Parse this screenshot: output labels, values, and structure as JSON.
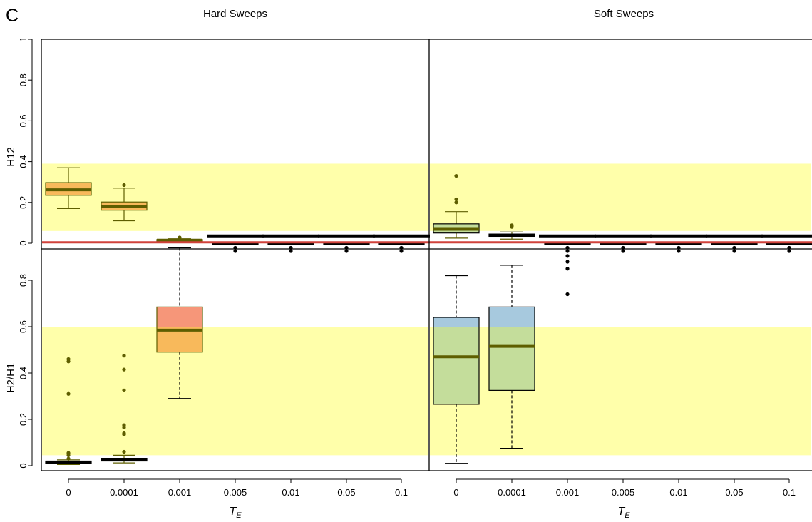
{
  "figure": {
    "panel_letter": "C",
    "colors": {
      "highlight_band": "#ffffaa",
      "threshold_line": "#d0423b",
      "olive": "#5e5e00",
      "orange_box": "#f8b95b",
      "salmon_box": "#f69679",
      "green_box": "#c4dd9b",
      "blue_box": "#a7c9de",
      "axis": "#000000"
    }
  },
  "chart_data": {
    "type": "boxplot",
    "xlabel": "T",
    "xlabel_sub": "E",
    "categories": [
      "0",
      "0.0001",
      "0.001",
      "0.005",
      "0.01",
      "0.05",
      "0.1"
    ],
    "columns": [
      {
        "title": "Hard Sweeps",
        "h12": {
          "band": [
            0.06,
            0.39
          ],
          "threshold": 0.015,
          "boxes": [
            {
              "q1": 0.235,
              "median": 0.262,
              "q3": 0.297,
              "lo": 0.17,
              "hi": 0.37,
              "out": [],
              "style": "orange"
            },
            {
              "q1": 0.162,
              "median": 0.18,
              "q3": 0.202,
              "lo": 0.11,
              "hi": 0.27,
              "out": [
                0.285
              ],
              "style": "orange"
            },
            {
              "q1": 0.01,
              "median": 0.015,
              "q3": 0.018,
              "lo": 0.01,
              "hi": 0.022,
              "out": [
                0.028
              ],
              "style": "orange"
            },
            {
              "q1": 0.0,
              "median": 0.002,
              "q3": 0.005,
              "lo": 0.0,
              "hi": 0.006,
              "out": [],
              "style": "flat"
            },
            {
              "q1": 0.0,
              "median": 0.002,
              "q3": 0.005,
              "lo": 0.0,
              "hi": 0.006,
              "out": [],
              "style": "flat"
            },
            {
              "q1": 0.0,
              "median": 0.002,
              "q3": 0.005,
              "lo": 0.0,
              "hi": 0.006,
              "out": [],
              "style": "flat"
            },
            {
              "q1": 0.0,
              "median": 0.002,
              "q3": 0.005,
              "lo": 0.0,
              "hi": 0.006,
              "out": [],
              "style": "flat"
            }
          ]
        },
        "h2h1": {
          "band": [
            0.045,
            0.6
          ],
          "boxes": [
            {
              "q1": 0.01,
              "median": 0.015,
              "q3": 0.02,
              "lo": 0.005,
              "hi": 0.025,
              "out": [
                0.03,
                0.045,
                0.055,
                0.31,
                0.45,
                0.46
              ],
              "style": "flat"
            },
            {
              "q1": 0.02,
              "median": 0.025,
              "q3": 0.032,
              "lo": 0.012,
              "hi": 0.045,
              "out": [
                0.06,
                0.135,
                0.14,
                0.165,
                0.175,
                0.325,
                0.415,
                0.475
              ],
              "style": "flat"
            },
            {
              "q1": 0.49,
              "median": 0.585,
              "q3": 0.685,
              "lo": 0.29,
              "hi": 0.94,
              "out": [],
              "style": "salmon"
            },
            {
              "q1": 0.99,
              "median": 0.99,
              "q3": 0.99,
              "lo": 0.99,
              "hi": 0.99,
              "out": [
                1.03,
                0.94
              ],
              "style": "top"
            },
            {
              "q1": 0.99,
              "median": 0.99,
              "q3": 0.99,
              "lo": 0.99,
              "hi": 0.99,
              "out": [
                1.03,
                0.94
              ],
              "style": "top"
            },
            {
              "q1": 0.99,
              "median": 0.99,
              "q3": 0.99,
              "lo": 0.99,
              "hi": 0.99,
              "out": [
                1.03,
                0.94
              ],
              "style": "top"
            },
            {
              "q1": 0.99,
              "median": 0.99,
              "q3": 0.99,
              "lo": 0.99,
              "hi": 0.99,
              "out": [
                1.03,
                0.94
              ],
              "style": "top"
            }
          ]
        }
      },
      {
        "title": "Soft Sweeps",
        "h12": {
          "band": [
            0.06,
            0.39
          ],
          "threshold": 0.015,
          "boxes": [
            {
              "q1": 0.05,
              "median": 0.068,
              "q3": 0.095,
              "lo": 0.025,
              "hi": 0.155,
              "out": [
                0.2,
                0.215,
                0.33
              ],
              "style": "green"
            },
            {
              "q1": 0.03,
              "median": 0.038,
              "q3": 0.045,
              "lo": 0.02,
              "hi": 0.055,
              "out": [
                0.08,
                0.088
              ],
              "style": "flat"
            },
            {
              "q1": 0.0,
              "median": 0.002,
              "q3": 0.005,
              "lo": 0.0,
              "hi": 0.006,
              "out": [],
              "style": "flat"
            },
            {
              "q1": 0.0,
              "median": 0.002,
              "q3": 0.005,
              "lo": 0.0,
              "hi": 0.006,
              "out": [],
              "style": "flat"
            },
            {
              "q1": 0.0,
              "median": 0.002,
              "q3": 0.005,
              "lo": 0.0,
              "hi": 0.006,
              "out": [],
              "style": "flat"
            },
            {
              "q1": 0.0,
              "median": 0.002,
              "q3": 0.005,
              "lo": 0.0,
              "hi": 0.006,
              "out": [],
              "style": "flat"
            },
            {
              "q1": 0.0,
              "median": 0.002,
              "q3": 0.005,
              "lo": 0.0,
              "hi": 0.006,
              "out": [],
              "style": "flat"
            }
          ]
        },
        "h2h1": {
          "band": [
            0.045,
            0.6
          ],
          "boxes": [
            {
              "q1": 0.265,
              "median": 0.47,
              "q3": 0.64,
              "lo": 0.01,
              "hi": 0.82,
              "out": [],
              "style": "blue"
            },
            {
              "q1": 0.325,
              "median": 0.515,
              "q3": 0.685,
              "lo": 0.075,
              "hi": 0.865,
              "out": [],
              "style": "blue"
            },
            {
              "q1": 0.99,
              "median": 0.99,
              "q3": 0.99,
              "lo": 0.99,
              "hi": 0.99,
              "out": [
                1.03,
                0.94,
                0.905,
                0.88,
                0.85,
                0.74
              ],
              "style": "top"
            },
            {
              "q1": 0.99,
              "median": 0.99,
              "q3": 0.99,
              "lo": 0.99,
              "hi": 0.99,
              "out": [
                1.03,
                0.94
              ],
              "style": "top"
            },
            {
              "q1": 0.99,
              "median": 0.99,
              "q3": 0.99,
              "lo": 0.99,
              "hi": 0.99,
              "out": [
                1.03,
                0.94
              ],
              "style": "top"
            },
            {
              "q1": 0.99,
              "median": 0.99,
              "q3": 0.99,
              "lo": 0.99,
              "hi": 0.99,
              "out": [
                1.03,
                0.94
              ],
              "style": "top"
            },
            {
              "q1": 0.99,
              "median": 0.99,
              "q3": 0.99,
              "lo": 0.99,
              "hi": 0.99,
              "out": [
                1.03,
                0.94
              ],
              "style": "top"
            }
          ]
        }
      }
    ],
    "rows": [
      {
        "ylabel": "H12",
        "ylim": [
          0,
          1
        ],
        "ticks": [
          "0",
          "0.2",
          "0.4",
          "0.6",
          "0.8",
          "1"
        ],
        "tick_values": [
          0,
          0.2,
          0.4,
          0.6,
          0.8,
          1
        ]
      },
      {
        "ylabel": "H2/H1",
        "ylim": [
          0,
          1
        ],
        "ticks": [
          "0",
          "0.2",
          "0.4",
          "0.6",
          "0.8"
        ],
        "tick_values": [
          0,
          0.2,
          0.4,
          0.6,
          0.8
        ]
      }
    ],
    "legend": null,
    "grid": false
  }
}
